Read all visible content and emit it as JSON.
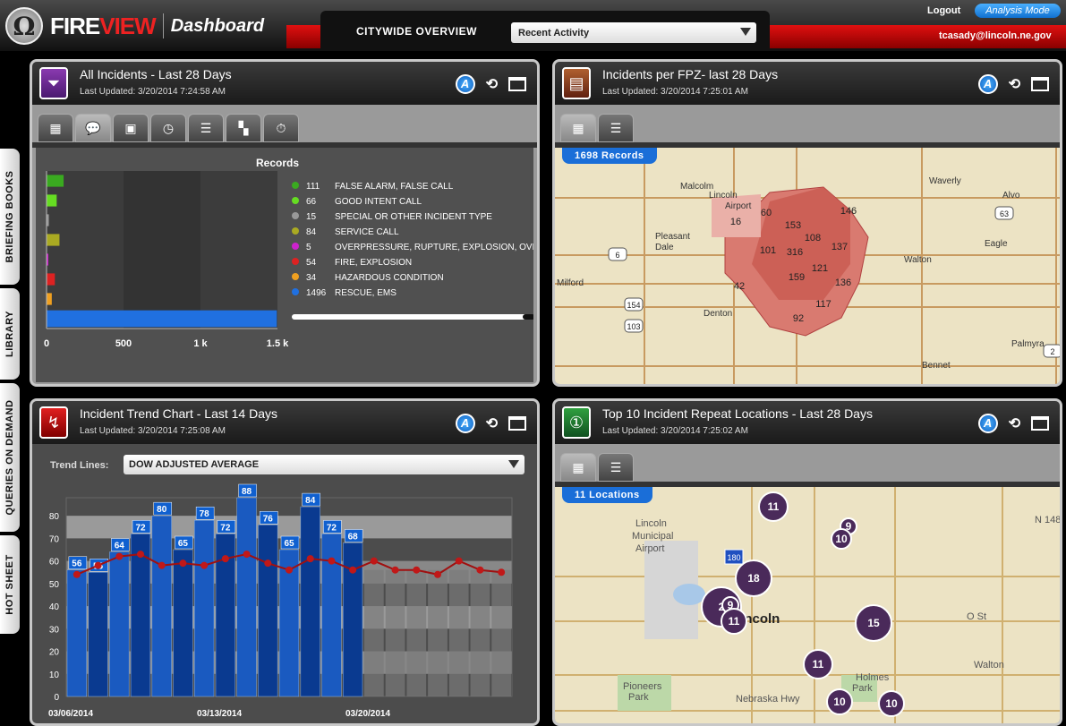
{
  "app": {
    "brand_fire": "FIRE",
    "brand_view": "VIEW",
    "section": "Dashboard"
  },
  "header": {
    "tab_title": "CITYWIDE OVERVIEW",
    "selector_value": "Recent Activity",
    "logout": "Logout",
    "mode": "Analysis Mode",
    "user": "tcasady@lincoln.ne.gov"
  },
  "sidebar": {
    "items": [
      "BRIEFING BOOKS",
      "LIBRARY",
      "QUERIES ON DEMAND",
      "HOT SHEET"
    ]
  },
  "panels": {
    "incidents": {
      "title": "All Incidents - Last 28 Days",
      "updated": "Last Updated: 3/20/2014 7:24:58 AM",
      "chart_title": "Records"
    },
    "fpz": {
      "title": "Incidents per FPZ- last 28 Days",
      "updated": "Last Updated: 3/20/2014 7:25:01 AM",
      "records": "1698  Records",
      "places": [
        "Malcolm",
        "Waverly",
        "Lincoln",
        "Airport",
        "Alvo",
        "Pleasant",
        "Dale",
        "Eagle",
        "Walton",
        "Milford",
        "Denton",
        "Palmyra",
        "Bennet"
      ],
      "roads": [
        "6",
        "154",
        "103",
        "63",
        "2"
      ],
      "zones": [
        "60",
        "146",
        "16",
        "153",
        "108",
        "101",
        "316",
        "137",
        "121",
        "42",
        "159",
        "136",
        "117",
        "92"
      ]
    },
    "trend": {
      "title": "Incident Trend Chart - Last 14 Days",
      "updated": "Last Updated: 3/20/2014 7:25:08 AM",
      "trend_label": "Trend Lines:",
      "trend_value": "DOW ADJUSTED AVERAGE"
    },
    "repeat": {
      "title": "Top 10 Incident Repeat Locations - Last 28 Days",
      "updated": "Last Updated: 3/20/2014 7:25:02 AM",
      "records": "11  Locations",
      "places": [
        "Lincoln",
        "Municipal",
        "Airport",
        "Lincoln",
        "Pioneers",
        "Park",
        "Holmes",
        "Park",
        "Walton",
        "O St",
        "Nebraska Hwy",
        "N 148"
      ],
      "roads": [
        "180"
      ],
      "clusters": [
        "11",
        "9",
        "10",
        "18",
        "2",
        "9",
        "11",
        "15",
        "11",
        "10",
        "10"
      ]
    }
  },
  "chart_data": [
    {
      "type": "bar",
      "title": "Records",
      "orientation": "horizontal",
      "categories": [
        "FALSE ALARM, FALSE CALL",
        "GOOD INTENT CALL",
        "SPECIAL OR OTHER INCIDENT TYPE",
        "SERVICE CALL",
        "OVERPRESSURE, RUPTURE, EXPLOSION, OVERHE",
        "FIRE, EXPLOSION",
        "HAZARDOUS CONDITION",
        "RESCUE, EMS"
      ],
      "values": [
        111,
        66,
        15,
        84,
        5,
        54,
        34,
        1496
      ],
      "colors": [
        "#3aaa20",
        "#66dd22",
        "#999999",
        "#aaaa22",
        "#cc22cc",
        "#dd2222",
        "#f0a020",
        "#2070e0"
      ],
      "xlim": [
        0,
        1500
      ],
      "ticks": [
        0,
        500,
        1000,
        1500
      ],
      "tick_labels": [
        "0",
        "500",
        "1 k",
        "1.5 k"
      ]
    },
    {
      "type": "bar",
      "title": "Incident Trend Chart - Last 14 Days",
      "values": [
        56,
        55,
        64,
        72,
        80,
        65,
        78,
        72,
        88,
        76,
        65,
        84,
        72,
        68
      ],
      "trend": [
        54,
        58,
        62,
        63,
        58,
        59,
        58,
        61,
        63,
        59,
        56,
        61,
        60,
        56,
        60,
        56,
        56,
        54,
        60,
        56,
        55
      ],
      "ylim": [
        0,
        88
      ],
      "yticks": [
        0,
        10,
        20,
        30,
        40,
        50,
        60,
        70,
        80
      ],
      "x_labels": [
        "03/06/2014",
        "03/13/2014",
        "03/20/2014"
      ],
      "total_days": 21
    }
  ]
}
